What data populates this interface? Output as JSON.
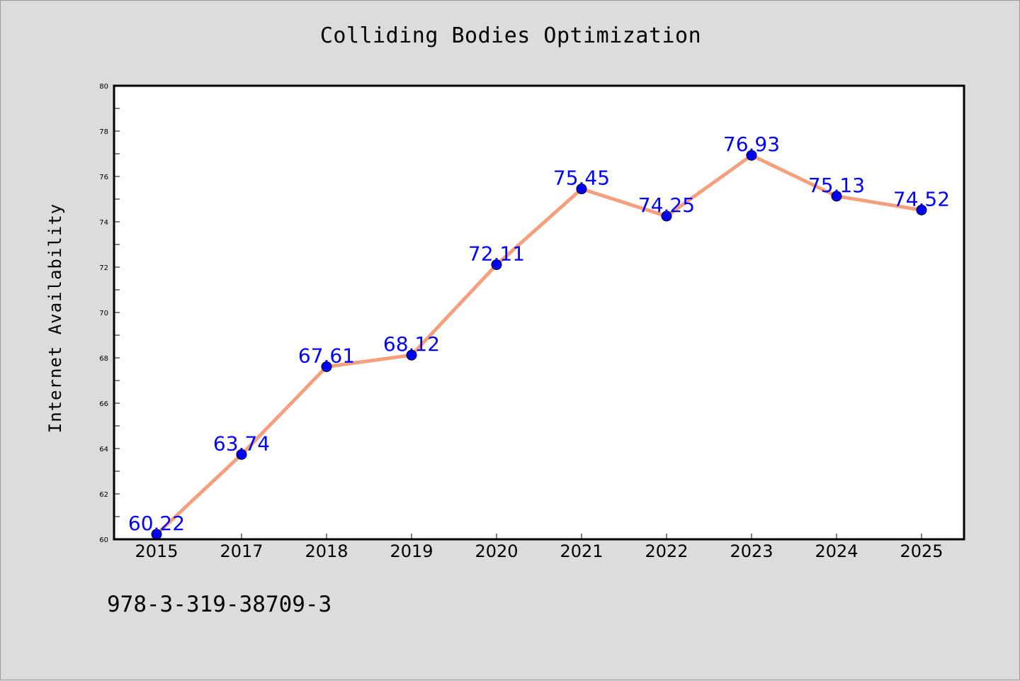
{
  "colors": {
    "background": "#dcdcdc",
    "plot_background": "#ffffff",
    "line": "#f4a07e",
    "marker": "#0000ff",
    "data_label": "#0000ff"
  },
  "footer_text": "978-3-319-38709-3",
  "chart_data": {
    "type": "line",
    "title": "Colliding Bodies Optimization",
    "xlabel": "",
    "ylabel": "Internet Availability",
    "categories": [
      "2015",
      "2017",
      "2018",
      "2019",
      "2020",
      "2021",
      "2022",
      "2023",
      "2024",
      "2025"
    ],
    "values": [
      60.22,
      63.74,
      67.61,
      68.12,
      72.11,
      75.45,
      74.25,
      76.93,
      75.13,
      74.52
    ],
    "data_labels": [
      "60.22",
      "63.74",
      "67.61",
      "68.12",
      "72.11",
      "75.45",
      "74.25",
      "76.93",
      "75.13",
      "74.52"
    ],
    "ylim": [
      60,
      80
    ],
    "yticks": [
      60,
      62,
      64,
      66,
      68,
      70,
      72,
      74,
      76,
      78,
      80
    ],
    "grid": false,
    "legend": "none"
  }
}
